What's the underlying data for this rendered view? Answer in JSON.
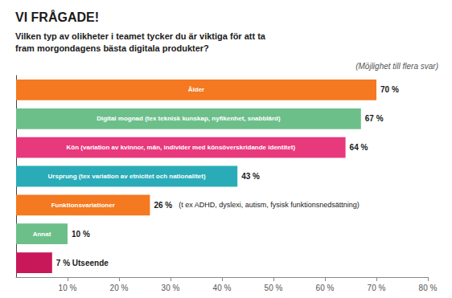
{
  "chart_data": {
    "type": "bar",
    "orientation": "horizontal",
    "title": "VI FRÅGADE!",
    "subtitle": "Vilken typ av olikheter i teamet tycker du är viktiga för att ta\nfram morgondagens bästa digitala produkter?",
    "note": "(Möjlighet till flera svar)",
    "categories": [
      "Ålder",
      "Digital mognad (tex teknisk kunskap, nyfikenhet, snabblärd)",
      "Kön (variation av kvinnor, män, individer med könsöverskridande identitet)",
      "Ursprung (tex variation av etnicitet och nationalitet)",
      "Funktionsvariationer",
      "Annat",
      "Utseende"
    ],
    "values": [
      70,
      67,
      64,
      43,
      26,
      10,
      7
    ],
    "value_labels": [
      "70 %",
      "67 %",
      "64 %",
      "43 %",
      "26 %",
      "10 %",
      "7 %"
    ],
    "colors": [
      "#F47920",
      "#6DBF8A",
      "#E8397D",
      "#2AACB8",
      "#F47920",
      "#6DBF8A",
      "#C8185A"
    ],
    "data_labels": true,
    "annotations": [
      {
        "category": "Funktionsvariationer",
        "text": "(t ex ADHD, dyslexi, autism, fysisk funktionsnedsättning)"
      }
    ],
    "xlim": [
      0,
      80
    ],
    "xticks": [
      {
        "value": 10,
        "label": "10 %"
      },
      {
        "value": 20,
        "label": "20 %"
      },
      {
        "value": 30,
        "label": "30 %"
      },
      {
        "value": 40,
        "label": "40 %"
      },
      {
        "value": 50,
        "label": "50 %"
      },
      {
        "value": 60,
        "label": "60 %"
      },
      {
        "value": 70,
        "label": "70 %"
      },
      {
        "value": 80,
        "label": "80 %"
      }
    ],
    "tick_labels": "x",
    "grid": false
  }
}
